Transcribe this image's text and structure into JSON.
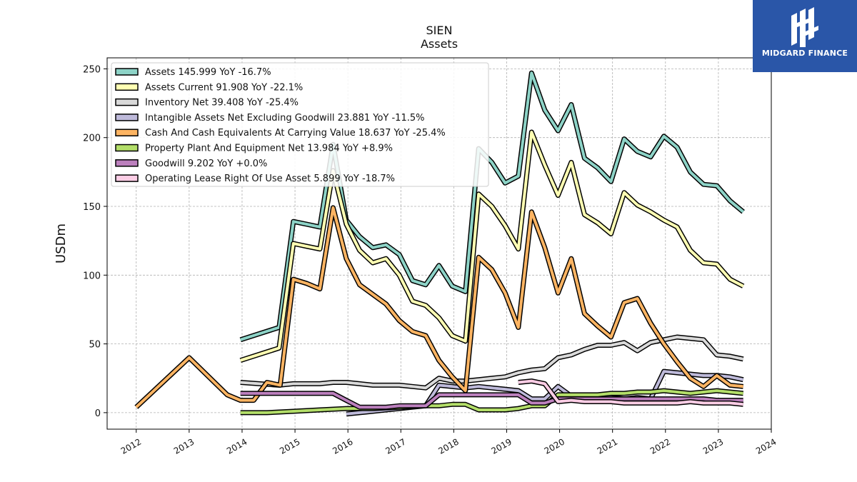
{
  "chart_data": {
    "type": "line",
    "title": "SIEN",
    "subtitle": "Assets",
    "xlabel": "",
    "ylabel": "USDm",
    "xlim": [
      2011.45,
      2024.0
    ],
    "ylim": [
      -12,
      258
    ],
    "x_ticks": [
      2012,
      2013,
      2014,
      2015,
      2016,
      2017,
      2018,
      2019,
      2020,
      2021,
      2022,
      2023,
      2024
    ],
    "x_tick_labels": [
      "2012",
      "2013",
      "2014",
      "2015",
      "2016",
      "2017",
      "2018",
      "2019",
      "2020",
      "2021",
      "2022",
      "2023",
      "2024"
    ],
    "y_ticks": [
      0,
      50,
      100,
      150,
      200,
      250
    ],
    "y_tick_labels": [
      "0",
      "50",
      "100",
      "150",
      "200",
      "250"
    ],
    "grid": true,
    "legend_position": "top-left",
    "series": [
      {
        "name": "Assets",
        "legend": "Assets  145.999 YoY -16.7%",
        "color": "#8dd3c7",
        "points": [
          [
            2013.97,
            53
          ],
          [
            2014.7,
            62
          ],
          [
            2014.97,
            139
          ],
          [
            2015.22,
            137
          ],
          [
            2015.47,
            135
          ],
          [
            2015.72,
            195
          ],
          [
            2015.97,
            140
          ],
          [
            2016.22,
            128
          ],
          [
            2016.47,
            120
          ],
          [
            2016.72,
            122
          ],
          [
            2016.97,
            115
          ],
          [
            2017.22,
            96
          ],
          [
            2017.47,
            93
          ],
          [
            2017.72,
            107
          ],
          [
            2017.97,
            92
          ],
          [
            2018.22,
            88
          ],
          [
            2018.47,
            192
          ],
          [
            2018.72,
            182
          ],
          [
            2018.97,
            167
          ],
          [
            2019.22,
            172
          ],
          [
            2019.47,
            247
          ],
          [
            2019.72,
            220
          ],
          [
            2019.97,
            205
          ],
          [
            2020.22,
            224
          ],
          [
            2020.47,
            185
          ],
          [
            2020.72,
            178
          ],
          [
            2020.97,
            168
          ],
          [
            2021.22,
            199
          ],
          [
            2021.47,
            190
          ],
          [
            2021.72,
            186
          ],
          [
            2021.97,
            201
          ],
          [
            2022.22,
            193
          ],
          [
            2022.47,
            175
          ],
          [
            2022.72,
            166
          ],
          [
            2022.97,
            165
          ],
          [
            2023.22,
            154
          ],
          [
            2023.47,
            146
          ]
        ]
      },
      {
        "name": "Assets Current",
        "legend": "Assets Current  91.908 YoY -22.1%",
        "color": "#ffffb3",
        "points": [
          [
            2013.97,
            38
          ],
          [
            2014.7,
            47
          ],
          [
            2014.97,
            123
          ],
          [
            2015.22,
            121
          ],
          [
            2015.47,
            119
          ],
          [
            2015.72,
            176
          ],
          [
            2015.97,
            137
          ],
          [
            2016.22,
            118
          ],
          [
            2016.47,
            109
          ],
          [
            2016.72,
            112
          ],
          [
            2016.97,
            100
          ],
          [
            2017.22,
            81
          ],
          [
            2017.47,
            78
          ],
          [
            2017.72,
            69
          ],
          [
            2017.97,
            56
          ],
          [
            2018.22,
            52
          ],
          [
            2018.47,
            159
          ],
          [
            2018.72,
            150
          ],
          [
            2018.97,
            136
          ],
          [
            2019.22,
            119
          ],
          [
            2019.47,
            204
          ],
          [
            2019.72,
            180
          ],
          [
            2019.97,
            158
          ],
          [
            2020.22,
            182
          ],
          [
            2020.47,
            144
          ],
          [
            2020.72,
            138
          ],
          [
            2020.97,
            130
          ],
          [
            2021.22,
            160
          ],
          [
            2021.47,
            151
          ],
          [
            2021.72,
            146
          ],
          [
            2021.97,
            140
          ],
          [
            2022.22,
            135
          ],
          [
            2022.47,
            118
          ],
          [
            2022.72,
            109
          ],
          [
            2022.97,
            108
          ],
          [
            2023.22,
            97
          ],
          [
            2023.47,
            92
          ]
        ]
      },
      {
        "name": "Inventory Net",
        "legend": "Inventory Net  39.408 YoY -25.4%",
        "color": "#d9d9d9",
        "points": [
          [
            2013.97,
            22
          ],
          [
            2014.7,
            20
          ],
          [
            2014.97,
            21
          ],
          [
            2015.22,
            21
          ],
          [
            2015.47,
            21
          ],
          [
            2015.72,
            22
          ],
          [
            2015.97,
            22
          ],
          [
            2016.22,
            21
          ],
          [
            2016.47,
            20
          ],
          [
            2016.72,
            20
          ],
          [
            2016.97,
            20
          ],
          [
            2017.22,
            19
          ],
          [
            2017.47,
            18
          ],
          [
            2017.72,
            25
          ],
          [
            2017.97,
            23
          ],
          [
            2018.22,
            23
          ],
          [
            2018.47,
            24
          ],
          [
            2018.72,
            25
          ],
          [
            2018.97,
            26
          ],
          [
            2019.22,
            29
          ],
          [
            2019.47,
            31
          ],
          [
            2019.72,
            32
          ],
          [
            2019.97,
            40
          ],
          [
            2020.22,
            42
          ],
          [
            2020.47,
            46
          ],
          [
            2020.72,
            49
          ],
          [
            2020.97,
            49
          ],
          [
            2021.22,
            51
          ],
          [
            2021.47,
            45
          ],
          [
            2021.72,
            51
          ],
          [
            2021.97,
            53
          ],
          [
            2022.22,
            55
          ],
          [
            2022.47,
            54
          ],
          [
            2022.72,
            53
          ],
          [
            2022.97,
            42
          ],
          [
            2023.22,
            41
          ],
          [
            2023.47,
            39
          ]
        ]
      },
      {
        "name": "Intangible Assets Net Excluding Goodwill",
        "legend": "Intangible Assets Net Excluding Goodwill  23.881 YoY -11.5%",
        "color": "#bebada",
        "points": [
          [
            2015.97,
            -1
          ],
          [
            2016.22,
            0
          ],
          [
            2016.47,
            1
          ],
          [
            2016.72,
            2
          ],
          [
            2016.97,
            3
          ],
          [
            2017.22,
            4
          ],
          [
            2017.47,
            5
          ],
          [
            2017.72,
            20
          ],
          [
            2017.97,
            19
          ],
          [
            2018.22,
            18
          ],
          [
            2018.47,
            19
          ],
          [
            2018.72,
            18
          ],
          [
            2018.97,
            17
          ],
          [
            2019.22,
            16
          ],
          [
            2019.47,
            10
          ],
          [
            2019.72,
            10
          ],
          [
            2019.97,
            19
          ],
          [
            2020.22,
            12
          ],
          [
            2020.47,
            11
          ],
          [
            2020.72,
            11
          ],
          [
            2020.97,
            11
          ],
          [
            2021.22,
            10
          ],
          [
            2021.47,
            11
          ],
          [
            2021.72,
            10
          ],
          [
            2021.97,
            30
          ],
          [
            2022.22,
            29
          ],
          [
            2022.47,
            28
          ],
          [
            2022.72,
            27
          ],
          [
            2022.97,
            27
          ],
          [
            2023.22,
            26
          ],
          [
            2023.47,
            24
          ]
        ]
      },
      {
        "name": "Cash And Cash Equivalents At Carrying Value",
        "legend": "Cash And Cash Equivalents At Carrying Value  18.637 YoY -25.4%",
        "color": "#fdb462",
        "points": [
          [
            2012,
            4
          ],
          [
            2013,
            40
          ],
          [
            2013.72,
            13
          ],
          [
            2013.97,
            9
          ],
          [
            2014.22,
            9
          ],
          [
            2014.47,
            22
          ],
          [
            2014.72,
            20
          ],
          [
            2014.97,
            97
          ],
          [
            2015.22,
            94
          ],
          [
            2015.47,
            90
          ],
          [
            2015.72,
            149
          ],
          [
            2015.97,
            112
          ],
          [
            2016.22,
            93
          ],
          [
            2016.47,
            86
          ],
          [
            2016.72,
            79
          ],
          [
            2016.97,
            67
          ],
          [
            2017.22,
            59
          ],
          [
            2017.47,
            56
          ],
          [
            2017.72,
            38
          ],
          [
            2017.97,
            26
          ],
          [
            2018.22,
            16
          ],
          [
            2018.47,
            113
          ],
          [
            2018.72,
            104
          ],
          [
            2018.97,
            87
          ],
          [
            2019.22,
            62
          ],
          [
            2019.47,
            146
          ],
          [
            2019.72,
            120
          ],
          [
            2019.97,
            87
          ],
          [
            2020.22,
            112
          ],
          [
            2020.47,
            72
          ],
          [
            2020.72,
            63
          ],
          [
            2020.97,
            55
          ],
          [
            2021.22,
            80
          ],
          [
            2021.47,
            83
          ],
          [
            2021.72,
            65
          ],
          [
            2021.97,
            50
          ],
          [
            2022.22,
            37
          ],
          [
            2022.47,
            25
          ],
          [
            2022.72,
            19
          ],
          [
            2022.97,
            27
          ],
          [
            2023.22,
            20
          ],
          [
            2023.47,
            19
          ]
        ]
      },
      {
        "name": "Property Plant And Equipment Net",
        "legend": "Property Plant And Equipment Net  13.984 YoY +8.9%",
        "color": "#b3de69",
        "points": [
          [
            2013.97,
            0
          ],
          [
            2014.47,
            0
          ],
          [
            2014.97,
            1
          ],
          [
            2015.47,
            2
          ],
          [
            2015.97,
            3
          ],
          [
            2016.47,
            3
          ],
          [
            2016.97,
            4
          ],
          [
            2017.47,
            5
          ],
          [
            2017.72,
            5
          ],
          [
            2017.97,
            6
          ],
          [
            2018.22,
            6
          ],
          [
            2018.47,
            2
          ],
          [
            2018.72,
            2
          ],
          [
            2018.97,
            2
          ],
          [
            2019.22,
            3
          ],
          [
            2019.47,
            5
          ],
          [
            2019.72,
            5
          ],
          [
            2019.97,
            13
          ],
          [
            2020.22,
            13
          ],
          [
            2020.47,
            13
          ],
          [
            2020.72,
            13
          ],
          [
            2020.97,
            14
          ],
          [
            2021.22,
            14
          ],
          [
            2021.47,
            15
          ],
          [
            2021.72,
            15
          ],
          [
            2021.97,
            16
          ],
          [
            2022.22,
            15
          ],
          [
            2022.47,
            14
          ],
          [
            2022.72,
            15
          ],
          [
            2022.97,
            16
          ],
          [
            2023.22,
            15
          ],
          [
            2023.47,
            14
          ]
        ]
      },
      {
        "name": "Goodwill",
        "legend": "Goodwill  9.202 YoY +0.0%",
        "color": "#bc80bd",
        "points": [
          [
            2013.97,
            14
          ],
          [
            2014.47,
            14
          ],
          [
            2014.97,
            14
          ],
          [
            2015.47,
            14
          ],
          [
            2015.72,
            14
          ],
          [
            2015.97,
            9
          ],
          [
            2016.22,
            4
          ],
          [
            2016.47,
            4
          ],
          [
            2016.72,
            4
          ],
          [
            2016.97,
            5
          ],
          [
            2017.22,
            5
          ],
          [
            2017.47,
            5
          ],
          [
            2017.72,
            13
          ],
          [
            2017.97,
            13
          ],
          [
            2018.22,
            13
          ],
          [
            2018.47,
            13
          ],
          [
            2018.72,
            13
          ],
          [
            2018.97,
            13
          ],
          [
            2019.22,
            13
          ],
          [
            2019.47,
            7
          ],
          [
            2019.72,
            7
          ],
          [
            2019.97,
            10
          ],
          [
            2020.22,
            10
          ],
          [
            2020.47,
            10
          ],
          [
            2020.72,
            10
          ],
          [
            2020.97,
            10
          ],
          [
            2021.22,
            10
          ],
          [
            2021.47,
            10
          ],
          [
            2021.72,
            10
          ],
          [
            2021.97,
            10
          ],
          [
            2022.22,
            10
          ],
          [
            2022.47,
            10
          ],
          [
            2022.72,
            10
          ],
          [
            2022.97,
            9
          ],
          [
            2023.22,
            9
          ],
          [
            2023.47,
            9
          ]
        ]
      },
      {
        "name": "Operating Lease Right Of Use Asset",
        "legend": "Operating Lease Right Of Use Asset  5.899 YoY -18.7%",
        "color": "#fccde5",
        "points": [
          [
            2019.22,
            22
          ],
          [
            2019.47,
            23
          ],
          [
            2019.72,
            21
          ],
          [
            2019.97,
            8
          ],
          [
            2020.22,
            9
          ],
          [
            2020.47,
            8
          ],
          [
            2020.72,
            8
          ],
          [
            2020.97,
            8
          ],
          [
            2021.22,
            7
          ],
          [
            2021.47,
            7
          ],
          [
            2021.72,
            7
          ],
          [
            2021.97,
            7
          ],
          [
            2022.22,
            7
          ],
          [
            2022.47,
            8
          ],
          [
            2022.72,
            7
          ],
          [
            2022.97,
            7
          ],
          [
            2023.22,
            7
          ],
          [
            2023.47,
            6
          ]
        ]
      }
    ]
  },
  "logo": {
    "text": "MIDGARD FINANCE",
    "icon": "midgard-logo-icon",
    "background": "#2a56a8"
  }
}
